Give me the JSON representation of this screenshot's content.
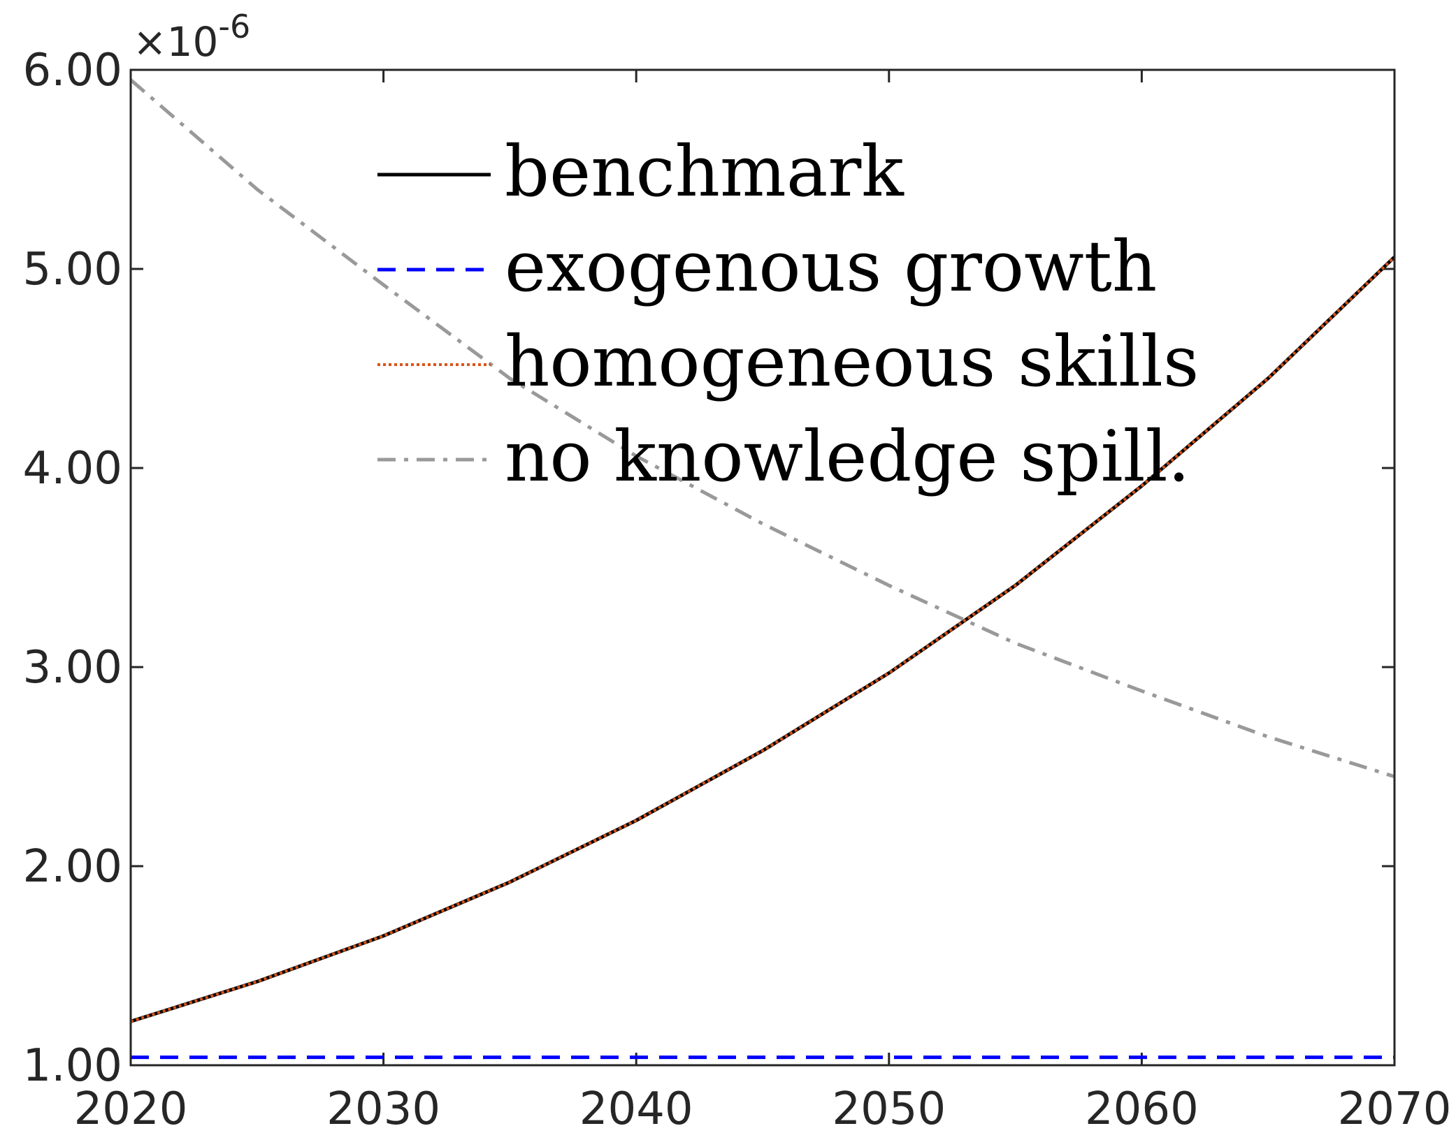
{
  "chart_data": {
    "type": "line",
    "title": "",
    "xlabel": "",
    "ylabel": "",
    "xlim": [
      2020,
      2070
    ],
    "ylim": [
      1.0,
      6.0
    ],
    "x_ticks": [
      2020,
      2030,
      2040,
      2050,
      2060,
      2070
    ],
    "x_tick_labels": [
      "2020",
      "2030",
      "2040",
      "2050",
      "2060",
      "2070"
    ],
    "y_ticks": [
      1,
      2,
      3,
      4,
      5,
      6
    ],
    "y_tick_labels": [
      "1.00",
      "2.00",
      "3.00",
      "4.00",
      "5.00",
      "6.00"
    ],
    "y_exponent_label": "×10",
    "y_exponent_power": "-6",
    "grid": false,
    "legend_position": "top-center",
    "series": [
      {
        "name": "benchmark",
        "color": "#000000",
        "style": "solid",
        "x": [
          2020,
          2025,
          2030,
          2035,
          2040,
          2045,
          2050,
          2055,
          2060,
          2065,
          2070
        ],
        "y": [
          1.22,
          1.42,
          1.65,
          1.92,
          2.23,
          2.58,
          2.97,
          3.41,
          3.91,
          4.45,
          5.06
        ]
      },
      {
        "name": "exogenous growth",
        "color": "#0000ff",
        "style": "dashed",
        "x": [
          2020,
          2025,
          2030,
          2035,
          2040,
          2045,
          2050,
          2055,
          2060,
          2065,
          2070
        ],
        "y": [
          1.04,
          1.04,
          1.04,
          1.04,
          1.04,
          1.04,
          1.04,
          1.04,
          1.04,
          1.04,
          1.04
        ]
      },
      {
        "name": "homogeneous skills",
        "color": "#d95319",
        "style": "dotted",
        "x": [
          2020,
          2025,
          2030,
          2035,
          2040,
          2045,
          2050,
          2055,
          2060,
          2065,
          2070
        ],
        "y": [
          1.22,
          1.42,
          1.65,
          1.92,
          2.23,
          2.58,
          2.97,
          3.41,
          3.91,
          4.45,
          5.06
        ]
      },
      {
        "name": "no knowledge spill.",
        "color": "#999999",
        "style": "dashdot",
        "x": [
          2020,
          2025,
          2030,
          2035,
          2040,
          2045,
          2050,
          2055,
          2060,
          2065,
          2070
        ],
        "y": [
          5.95,
          5.4,
          4.92,
          4.45,
          4.06,
          3.72,
          3.41,
          3.12,
          2.88,
          2.65,
          2.45
        ]
      }
    ]
  }
}
